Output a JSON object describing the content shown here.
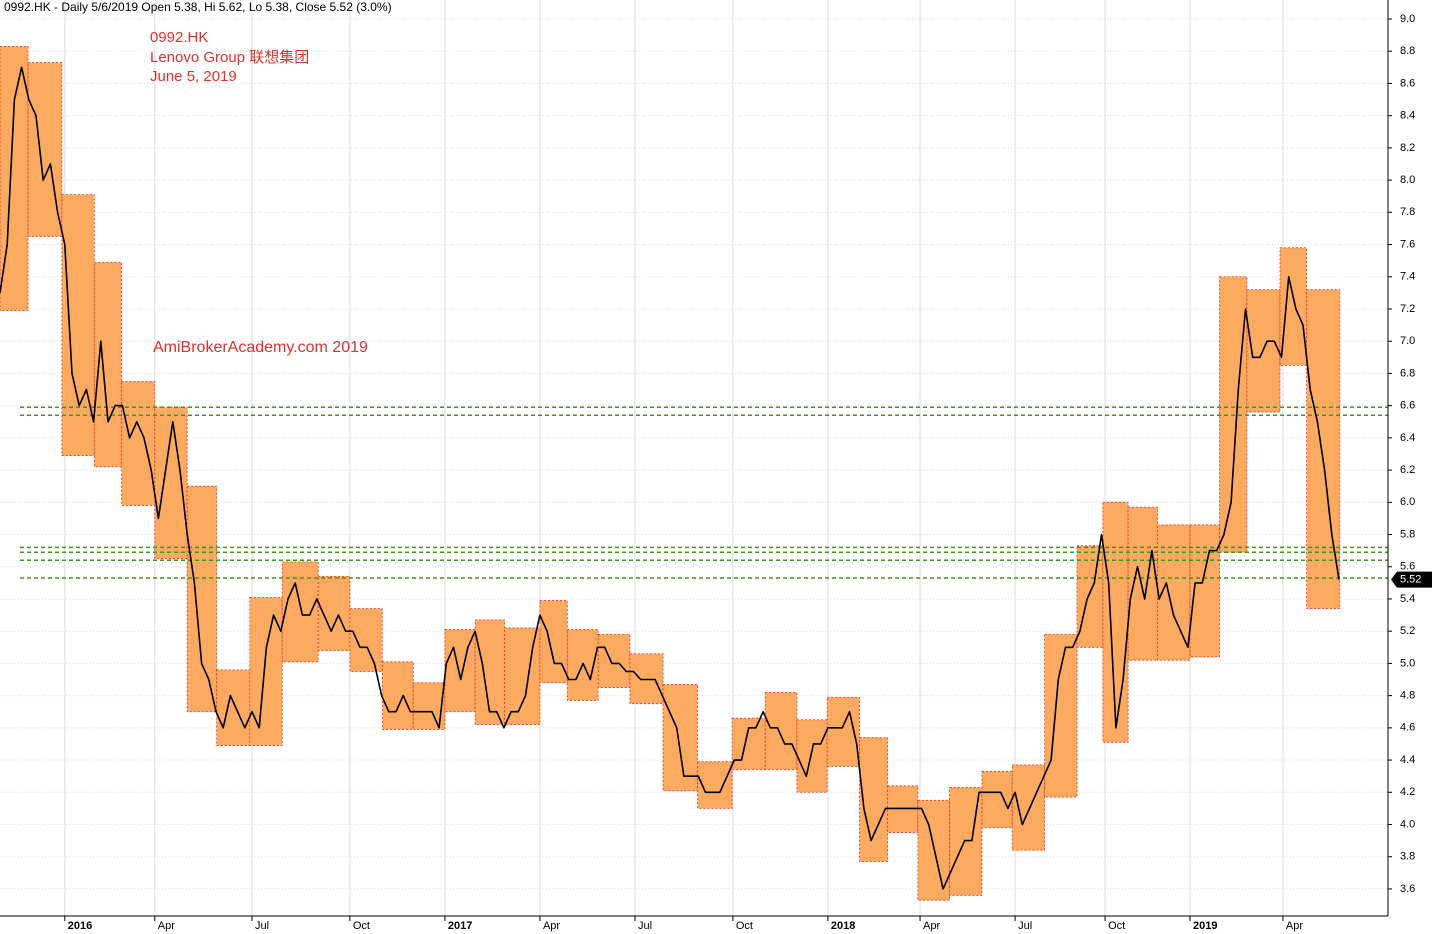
{
  "chart_data": {
    "type": "line",
    "title": "0992.HK - Daily 5/6/2019 Open 5.38, Hi 5.62, Lo 5.38, Close 5.52 (3.0%)",
    "annotations": [
      "0992.HK",
      "Lenovo Group 联想集团",
      "June 5, 2019",
      "AmiBrokerAcademy.com  2019"
    ],
    "xlim": [
      0,
      192.8
    ],
    "ylim": [
      3.432,
      9.118
    ],
    "xticks": [
      {
        "value": 9,
        "label": "2016"
      },
      {
        "value": 21.5,
        "label": "Apr"
      },
      {
        "value": 35,
        "label": "Jul"
      },
      {
        "value": 48.6,
        "label": "Oct"
      },
      {
        "value": 61.8,
        "label": "2017"
      },
      {
        "value": 75,
        "label": "Apr"
      },
      {
        "value": 88.2,
        "label": "Jul"
      },
      {
        "value": 101.8,
        "label": "Oct"
      },
      {
        "value": 115,
        "label": "2018"
      },
      {
        "value": 127.8,
        "label": "Apr"
      },
      {
        "value": 141,
        "label": "Jul"
      },
      {
        "value": 153.5,
        "label": "Oct"
      },
      {
        "value": 165.3,
        "label": "2019"
      },
      {
        "value": 178.2,
        "label": "Apr"
      }
    ],
    "yticks": [
      3.6,
      3.8,
      {
        "value": 4,
        "label": "4.0"
      },
      4.2,
      4.4,
      4.6,
      4.8,
      {
        "value": 5,
        "label": "5.0"
      },
      5.2,
      5.4,
      5.6,
      5.8,
      {
        "value": 6,
        "label": "6.0"
      },
      6.2,
      6.4,
      6.6,
      6.8,
      {
        "value": 7,
        "label": "7.0"
      },
      7.2,
      7.4,
      7.6,
      7.8,
      {
        "value": 8,
        "label": "8.0"
      },
      8.2,
      8.4,
      8.6,
      8.8,
      {
        "value": 9,
        "label": "9.0"
      }
    ],
    "grid": true,
    "series": [
      {
        "color": "#000000",
        "values": [
          7.3,
          7.6,
          8.5,
          8.7,
          8.5,
          8.4,
          8.0,
          8.1,
          7.8,
          7.6,
          6.8,
          6.6,
          6.7,
          6.5,
          7.0,
          6.5,
          6.6,
          6.6,
          6.4,
          6.5,
          6.4,
          6.2,
          5.9,
          6.2,
          6.5,
          6.2,
          5.8,
          5.5,
          5.0,
          4.9,
          4.7,
          4.6,
          4.8,
          4.7,
          4.6,
          4.7,
          4.6,
          5.1,
          5.3,
          5.2,
          5.4,
          5.5,
          5.3,
          5.3,
          5.4,
          5.3,
          5.2,
          5.3,
          5.2,
          5.2,
          5.1,
          5.1,
          5.0,
          4.8,
          4.7,
          4.7,
          4.8,
          4.7,
          4.7,
          4.7,
          4.7,
          4.6,
          5.0,
          5.1,
          4.9,
          5.1,
          5.2,
          5.0,
          4.7,
          4.7,
          4.6,
          4.7,
          4.7,
          4.8,
          5.1,
          5.3,
          5.2,
          5.0,
          5.0,
          4.9,
          4.9,
          5.0,
          4.9,
          5.1,
          5.1,
          5.0,
          5.0,
          4.95,
          4.95,
          4.9,
          4.9,
          4.9,
          4.8,
          4.7,
          4.6,
          4.3,
          4.3,
          4.3,
          4.2,
          4.2,
          4.2,
          4.3,
          4.4,
          4.4,
          4.6,
          4.6,
          4.7,
          4.6,
          4.6,
          4.5,
          4.5,
          4.4,
          4.3,
          4.5,
          4.5,
          4.6,
          4.6,
          4.6,
          4.7,
          4.5,
          4.1,
          3.9,
          4.0,
          4.1,
          4.1,
          4.1,
          4.1,
          4.1,
          4.1,
          4.0,
          3.8,
          3.6,
          3.7,
          3.8,
          3.9,
          3.9,
          4.2,
          4.2,
          4.2,
          4.2,
          4.1,
          4.2,
          4.0,
          4.1,
          4.2,
          4.3,
          4.4,
          4.9,
          5.1,
          5.1,
          5.2,
          5.4,
          5.5,
          5.8,
          5.5,
          4.6,
          4.9,
          5.4,
          5.6,
          5.4,
          5.7,
          5.4,
          5.5,
          5.3,
          5.2,
          5.1,
          5.5,
          5.5,
          5.7,
          5.7,
          5.8,
          6.0,
          6.7,
          7.2,
          6.9,
          6.9,
          7.0,
          7.0,
          6.9,
          7.4,
          7.2,
          7.1,
          6.7,
          6.5,
          6.2,
          5.8,
          5.52
        ]
      }
    ],
    "ranges": [
      {
        "start": 0,
        "end": 3.9,
        "low": 7.19,
        "high": 8.83
      },
      {
        "start": 3.9,
        "end": 8.6,
        "low": 7.65,
        "high": 8.73
      },
      {
        "start": 8.6,
        "end": 13.1,
        "low": 6.29,
        "high": 7.91
      },
      {
        "start": 13.1,
        "end": 16.9,
        "low": 6.22,
        "high": 7.49
      },
      {
        "start": 16.9,
        "end": 21.5,
        "low": 5.98,
        "high": 6.75
      },
      {
        "start": 21.5,
        "end": 26,
        "low": 5.65,
        "high": 6.59
      },
      {
        "start": 26,
        "end": 30.1,
        "low": 4.7,
        "high": 6.1
      },
      {
        "start": 30.1,
        "end": 34.7,
        "low": 4.49,
        "high": 4.96
      },
      {
        "start": 34.7,
        "end": 39.2,
        "low": 4.49,
        "high": 5.41
      },
      {
        "start": 39.2,
        "end": 44.2,
        "low": 5.01,
        "high": 5.63
      },
      {
        "start": 44.2,
        "end": 48.6,
        "low": 5.08,
        "high": 5.54
      },
      {
        "start": 48.6,
        "end": 53.1,
        "low": 4.95,
        "high": 5.34
      },
      {
        "start": 53.1,
        "end": 57.4,
        "low": 4.59,
        "high": 5.01
      },
      {
        "start": 57.4,
        "end": 61.8,
        "low": 4.59,
        "high": 4.88
      },
      {
        "start": 61.8,
        "end": 66,
        "low": 4.7,
        "high": 5.21
      },
      {
        "start": 66,
        "end": 70.1,
        "low": 4.62,
        "high": 5.27
      },
      {
        "start": 70.1,
        "end": 75,
        "low": 4.62,
        "high": 5.22
      },
      {
        "start": 75,
        "end": 78.8,
        "low": 4.88,
        "high": 5.39
      },
      {
        "start": 78.8,
        "end": 83.1,
        "low": 4.77,
        "high": 5.21
      },
      {
        "start": 83.1,
        "end": 87.5,
        "low": 4.85,
        "high": 5.18
      },
      {
        "start": 87.5,
        "end": 92.1,
        "low": 4.75,
        "high": 5.06
      },
      {
        "start": 92.1,
        "end": 96.9,
        "low": 4.21,
        "high": 4.87
      },
      {
        "start": 96.9,
        "end": 101.7,
        "low": 4.1,
        "high": 4.39
      },
      {
        "start": 101.7,
        "end": 106.3,
        "low": 4.34,
        "high": 4.66
      },
      {
        "start": 106.3,
        "end": 110.7,
        "low": 4.34,
        "high": 4.82
      },
      {
        "start": 110.7,
        "end": 114.9,
        "low": 4.2,
        "high": 4.65
      },
      {
        "start": 114.9,
        "end": 119.4,
        "low": 4.36,
        "high": 4.79
      },
      {
        "start": 119.4,
        "end": 123.3,
        "low": 3.77,
        "high": 4.54
      },
      {
        "start": 123.3,
        "end": 127.5,
        "low": 3.95,
        "high": 4.24
      },
      {
        "start": 127.5,
        "end": 131.9,
        "low": 3.53,
        "high": 4.15
      },
      {
        "start": 131.9,
        "end": 136.4,
        "low": 3.56,
        "high": 4.23
      },
      {
        "start": 136.4,
        "end": 140.6,
        "low": 3.98,
        "high": 4.33
      },
      {
        "start": 140.6,
        "end": 145.1,
        "low": 3.84,
        "high": 4.37
      },
      {
        "start": 145.1,
        "end": 149.6,
        "low": 4.17,
        "high": 5.18
      },
      {
        "start": 149.6,
        "end": 153.2,
        "low": 5.1,
        "high": 5.73
      },
      {
        "start": 153.2,
        "end": 156.7,
        "low": 4.51,
        "high": 6.0
      },
      {
        "start": 156.7,
        "end": 160.8,
        "low": 5.02,
        "high": 5.97
      },
      {
        "start": 160.8,
        "end": 165.3,
        "low": 5.02,
        "high": 5.86
      },
      {
        "start": 165.3,
        "end": 169.4,
        "low": 5.04,
        "high": 5.86
      },
      {
        "start": 169.4,
        "end": 173.2,
        "low": 5.69,
        "high": 7.4
      },
      {
        "start": 173.2,
        "end": 177.8,
        "low": 6.56,
        "high": 7.32
      },
      {
        "start": 177.8,
        "end": 181.5,
        "low": 6.85,
        "high": 7.58
      },
      {
        "start": 181.5,
        "end": 186.1,
        "low": 5.34,
        "high": 7.32
      }
    ],
    "levels": [
      6.59,
      6.54,
      5.72,
      5.69,
      5.64,
      5.53
    ]
  }
}
